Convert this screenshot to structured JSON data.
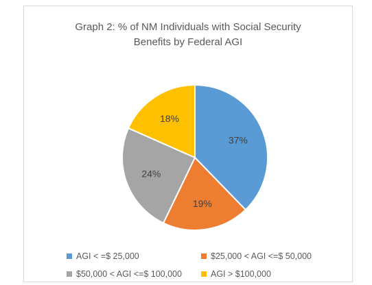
{
  "chart_data": {
    "type": "pie",
    "title_line1": "Graph 2: % of NM Individuals with Social Security",
    "title_line2": "Benefits by Federal AGI",
    "slices": [
      {
        "label": "AGI < =$ 25,000",
        "value": 37,
        "display": "37%",
        "color": "#5b9bd5"
      },
      {
        "label": "$25,000 < AGI <=$ 50,000",
        "value": 19,
        "display": "19%",
        "color": "#ed7d31"
      },
      {
        "label": "$50,000 < AGI <=$ 100,000",
        "value": 24,
        "display": "24%",
        "color": "#a5a5a5"
      },
      {
        "label": "AGI > $100,000",
        "value": 18,
        "display": "18%",
        "color": "#ffc000"
      }
    ],
    "legend_position": "bottom"
  }
}
